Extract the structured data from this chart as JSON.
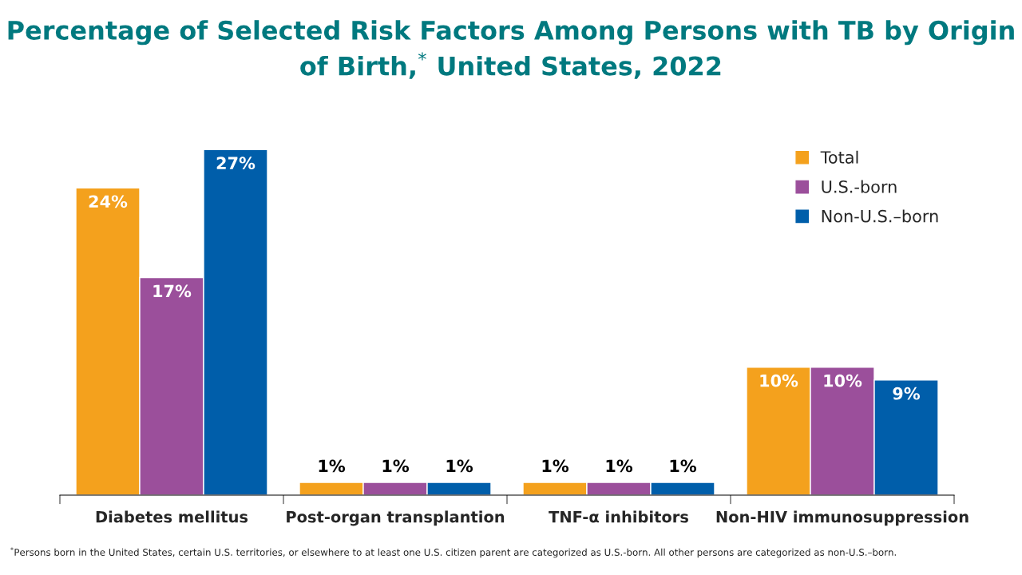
{
  "chart_data": {
    "type": "bar",
    "title": "Percentage of Selected Risk Factors Among Persons with TB by Origin of Birth,$^{*}$ United States, 2022",
    "categories": [
      "Diabetes mellitus",
      "Post-organ transplantion",
      "TNF-α inhibitors",
      "Non-HIV immunosuppression"
    ],
    "series": [
      {
        "name": "Total",
        "color": "#f4a11d",
        "values": [
          24,
          1,
          1,
          10
        ],
        "value_labels": [
          "24%",
          "1%",
          "1%",
          "10%"
        ]
      },
      {
        "name": "U.S.-born",
        "color": "#9b4f9b",
        "values": [
          17,
          1,
          1,
          10
        ],
        "value_labels": [
          "17%",
          "1%",
          "1%",
          "10%"
        ]
      },
      {
        "name": "Non-U.S.–born",
        "color": "#005eaa",
        "values": [
          27,
          1,
          1,
          9
        ],
        "value_labels": [
          "27%",
          "1%",
          "1%",
          "9%"
        ]
      }
    ],
    "legend": "top right",
    "annotations": [
      "$^{*}$Persons born in the United States, certain U.S. territories, or elsewhere to at least one U.S. citizen parent are categorized as U.S.-born. All other persons are categorized as non-U.S.–born."
    ]
  }
}
